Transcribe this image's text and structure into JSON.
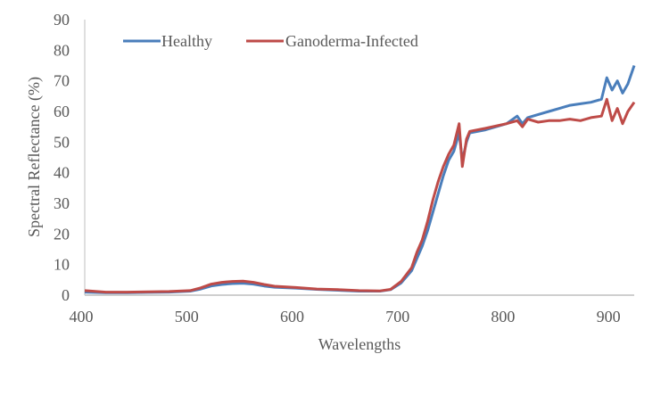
{
  "chart_data": {
    "type": "line",
    "title": "",
    "xlabel": "Wavelengths",
    "ylabel": "Spectral Reflectance (%)",
    "xlim": [
      400,
      921
    ],
    "ylim": [
      0,
      90
    ],
    "xticks": [
      "400",
      "500",
      "600",
      "700",
      "800",
      "900"
    ],
    "yticks": [
      "0",
      "10",
      "20",
      "30",
      "40",
      "50",
      "60",
      "70",
      "80",
      "90"
    ],
    "legend_position": "top",
    "series": [
      {
        "name": "Healthy",
        "color": "#4a7ebb",
        "x": [
          400,
          420,
          440,
          460,
          480,
          500,
          510,
          520,
          530,
          540,
          550,
          560,
          570,
          580,
          600,
          620,
          640,
          660,
          680,
          690,
          700,
          710,
          715,
          720,
          725,
          730,
          735,
          740,
          745,
          750,
          755,
          758,
          762,
          765,
          780,
          800,
          810,
          815,
          820,
          830,
          840,
          850,
          860,
          870,
          880,
          890,
          895,
          900,
          905,
          910,
          915,
          921
        ],
        "y": [
          1,
          0.8,
          0.8,
          0.9,
          1,
          1.3,
          2,
          3,
          3.5,
          3.8,
          3.9,
          3.6,
          3,
          2.6,
          2.3,
          1.9,
          1.6,
          1.3,
          1.3,
          1.8,
          4,
          8,
          12,
          16,
          21,
          27,
          33,
          39,
          44,
          47,
          53,
          44,
          50,
          53,
          54,
          56,
          58.5,
          56,
          58,
          59,
          60,
          61,
          62,
          62.5,
          63,
          64,
          71,
          67,
          70,
          66,
          69,
          75
        ]
      },
      {
        "name": "Ganoderma-Infected",
        "color": "#be4b48",
        "x": [
          400,
          420,
          440,
          460,
          480,
          500,
          510,
          520,
          530,
          540,
          550,
          560,
          570,
          580,
          600,
          620,
          640,
          660,
          680,
          690,
          700,
          710,
          715,
          720,
          725,
          730,
          735,
          740,
          745,
          750,
          755,
          758,
          762,
          765,
          780,
          800,
          810,
          815,
          820,
          830,
          840,
          850,
          860,
          870,
          880,
          890,
          895,
          900,
          905,
          910,
          915,
          921
        ],
        "y": [
          1.5,
          1,
          1,
          1.1,
          1.2,
          1.5,
          2.4,
          3.6,
          4.2,
          4.5,
          4.6,
          4.2,
          3.5,
          2.9,
          2.5,
          2,
          1.8,
          1.5,
          1.4,
          1.9,
          4.5,
          9,
          14,
          18,
          24,
          31,
          37,
          42,
          46,
          49,
          56,
          42,
          51,
          53.5,
          54.5,
          56,
          57,
          55,
          57.5,
          56.5,
          57,
          57,
          57.5,
          57,
          58,
          58.5,
          64,
          57,
          61,
          56,
          60,
          63
        ]
      }
    ]
  }
}
